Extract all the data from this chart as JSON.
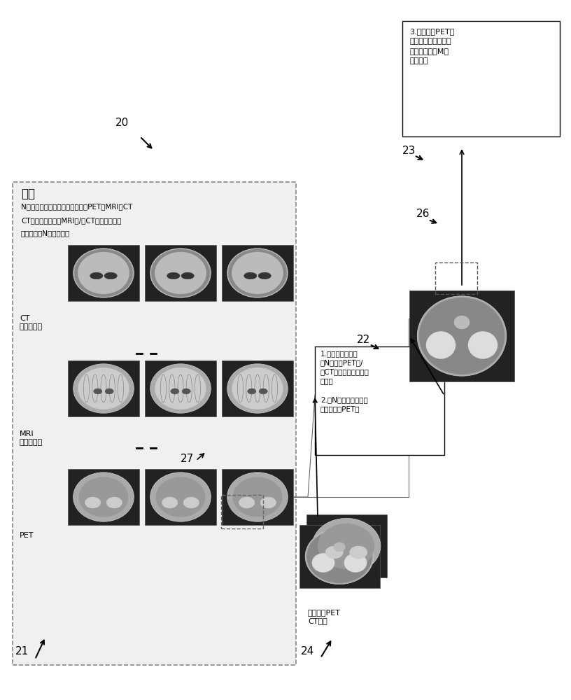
{
  "bg_color": "#ffffff",
  "label_20": "20",
  "label_21": "21",
  "label_22": "22",
  "label_23": "23",
  "label_24": "24",
  "label_26": "26",
  "label_27": "27",
  "template_title": "模板",
  "template_desc1": "N个具代表性的模板，具有匹配的PET、MRI、CT",
  "template_desc2": "CT是可选的。来自MRI和/或CT的组织映射图",
  "template_desc3": "计算相关的N个大脑表面",
  "ct_label": "CT\n组织映射图",
  "mri_label": "MRI\n组织映射图",
  "pet_label": "PET",
  "new_subject_label": "新的主体PET\nCT可选",
  "box22_line1": "1.将新的主体对准",
  "box22_line2": "至N个基于PET和/",
  "box22_line3": "或CT（如果可用的话）",
  "box22_line4": "的模板",
  "box22_line5": "2.将N个模板表面定位",
  "box22_line6": "在新的主体PET上",
  "box23_line1": "3.基于来自PET的",
  "box23_line2": "小块相似度来为每个",
  "box23_line3": "表面位置选择M个",
  "box23_line4": "最佳模板"
}
